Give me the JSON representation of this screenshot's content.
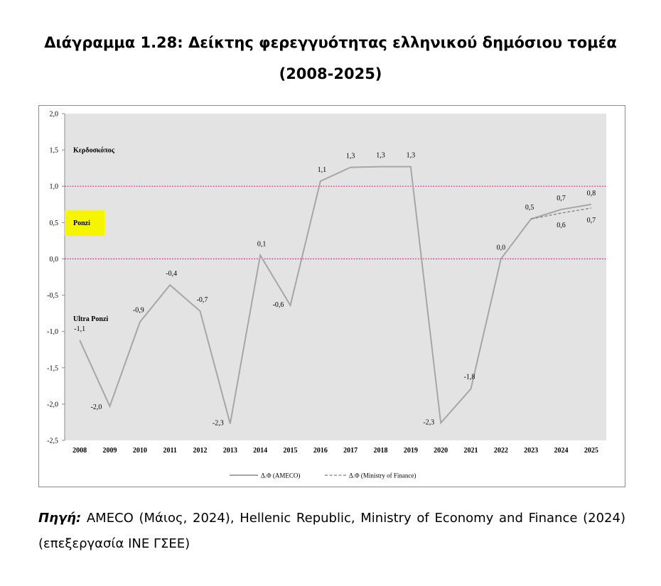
{
  "title": {
    "lead": "Διάγραμμα 1.28:",
    "rest": " Δείκτης φερεγγυότητας ελληνικού δημόσιου τομέα",
    "line2": "(2008-2025)"
  },
  "source": {
    "label": "Πηγή:",
    "text": " AMECO (Μάιος, 2024), Hellenic Republic, Ministry of Economy and Finance (2024) (επεξεργασία ΙΝΕ ΓΣΕΕ)"
  },
  "colors": {
    "plot_bg": "#e3e3e3",
    "ameco_line": "#a6a6a6",
    "mof_line": "#7f7f7f",
    "threshold": "#e0248a",
    "highlight": "#f5f500"
  },
  "chart_data": {
    "type": "line",
    "x": [
      "2008",
      "2009",
      "2010",
      "2011",
      "2012",
      "2013",
      "2014",
      "2015",
      "2016",
      "2017",
      "2018",
      "2019",
      "2020",
      "2021",
      "2022",
      "2023",
      "2024",
      "2025"
    ],
    "ylim": [
      -2.5,
      2.0
    ],
    "yticks": [
      "2,0",
      "1,5",
      "1,0",
      "0,5",
      "0,0",
      "-0,5",
      "-1,0",
      "-1,5",
      "-2,0",
      "-2,5"
    ],
    "ytick_values": [
      2.0,
      1.5,
      1.0,
      0.5,
      0.0,
      -0.5,
      -1.0,
      -1.5,
      -2.0,
      -2.5
    ],
    "series": [
      {
        "name": "Δ.Φ (AMECO)",
        "style": "solid",
        "values": [
          -1.12,
          -2.03,
          -0.87,
          -0.36,
          -0.72,
          -2.27,
          0.05,
          -0.64,
          1.07,
          1.26,
          1.27,
          1.27,
          -2.26,
          -1.79,
          0.0,
          0.55,
          0.68,
          0.75
        ],
        "labels": [
          "-1,1",
          "-2,0",
          "-0,9",
          "-0,4",
          "-0,7",
          "-2,3",
          "0,1",
          "-0,6",
          "1,1",
          "1,3",
          "1,3",
          "1,3",
          "-2,3",
          "-1,8",
          "0,0",
          "0,5",
          "0,7",
          "0,8"
        ]
      },
      {
        "name": "Δ.Φ (Ministry of Finance)",
        "style": "dashed",
        "x": [
          "2023",
          "2024",
          "2025"
        ],
        "values": [
          0.55,
          0.63,
          0.7
        ],
        "labels": [
          "",
          "0,6",
          "0,7"
        ]
      }
    ],
    "thresholds": [
      1.0,
      0.0
    ],
    "zone_labels": [
      {
        "text": "Κερδοσκόπος",
        "y": 1.5
      },
      {
        "text": "Ponzi",
        "y": 0.5
      },
      {
        "text": "Ultra Ponzi",
        "y": -0.82
      }
    ],
    "legend": "bottom",
    "grid": false
  }
}
